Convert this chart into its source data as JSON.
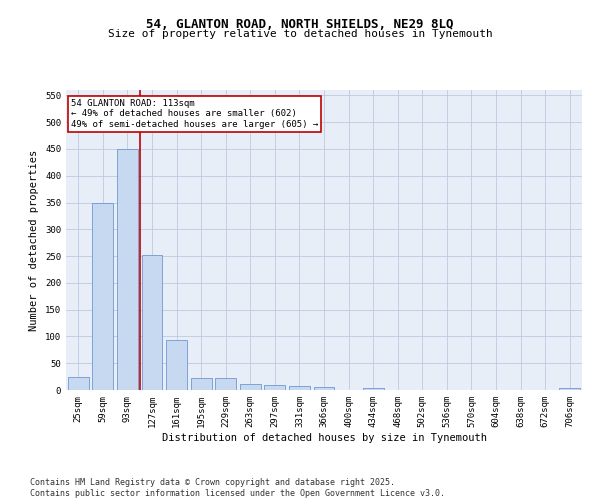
{
  "title": "54, GLANTON ROAD, NORTH SHIELDS, NE29 8LQ",
  "subtitle": "Size of property relative to detached houses in Tynemouth",
  "xlabel": "Distribution of detached houses by size in Tynemouth",
  "ylabel": "Number of detached properties",
  "categories": [
    "25sqm",
    "59sqm",
    "93sqm",
    "127sqm",
    "161sqm",
    "195sqm",
    "229sqm",
    "263sqm",
    "297sqm",
    "331sqm",
    "366sqm",
    "400sqm",
    "434sqm",
    "468sqm",
    "502sqm",
    "536sqm",
    "570sqm",
    "604sqm",
    "638sqm",
    "672sqm",
    "706sqm"
  ],
  "values": [
    25,
    350,
    450,
    252,
    93,
    22,
    22,
    12,
    10,
    7,
    5,
    0,
    3,
    0,
    0,
    0,
    0,
    0,
    0,
    0,
    4
  ],
  "bar_color": "#c6d9f0",
  "bar_edge_color": "#5a89c8",
  "vline_color": "#c00000",
  "annotation_text": "54 GLANTON ROAD: 113sqm\n← 49% of detached houses are smaller (602)\n49% of semi-detached houses are larger (605) →",
  "annotation_box_color": "#ffffff",
  "annotation_box_edge": "#c00000",
  "ylim": [
    0,
    560
  ],
  "yticks": [
    0,
    50,
    100,
    150,
    200,
    250,
    300,
    350,
    400,
    450,
    500,
    550
  ],
  "bg_color": "#ffffff",
  "plot_bg_color": "#e8eef8",
  "grid_color": "#c0c8e0",
  "footer": "Contains HM Land Registry data © Crown copyright and database right 2025.\nContains public sector information licensed under the Open Government Licence v3.0.",
  "title_fontsize": 9,
  "subtitle_fontsize": 8,
  "axis_label_fontsize": 7.5,
  "tick_fontsize": 6.5,
  "annotation_fontsize": 6.5,
  "footer_fontsize": 6
}
